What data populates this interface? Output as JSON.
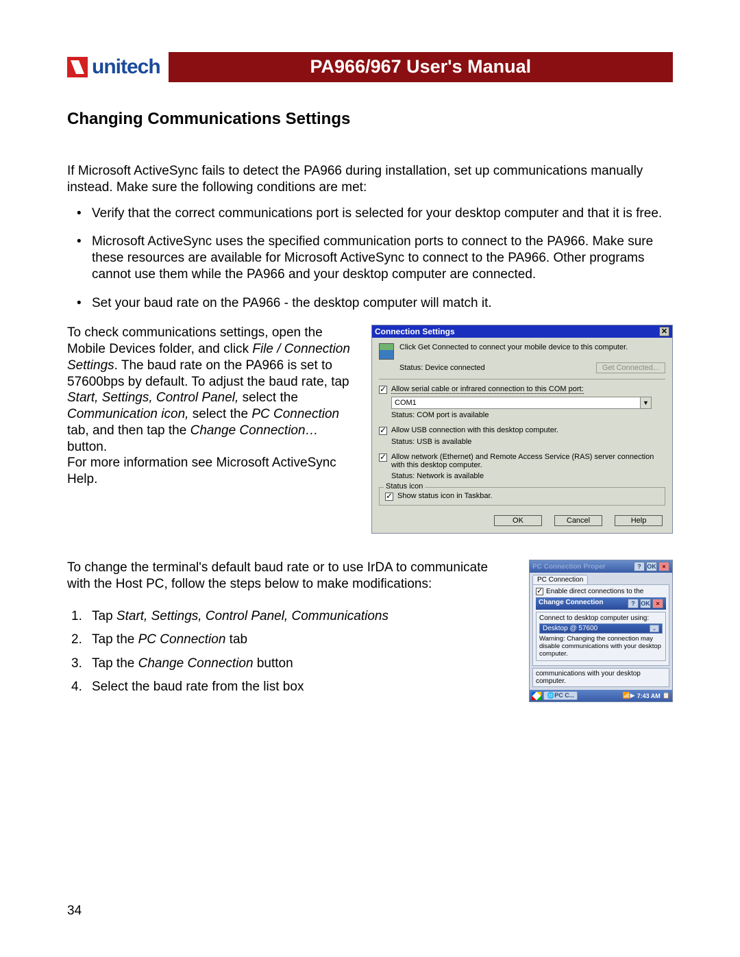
{
  "header": {
    "logo_text": "unitech",
    "title": "PA966/967 User's Manual"
  },
  "section_title": "Changing Communications Settings",
  "intro": "If Microsoft ActiveSync fails to detect the PA966 during installation, set up communications manually instead.  Make sure the following conditions are met:",
  "bullets": [
    "Verify that the correct communications port is selected for your desktop computer and that it is free.",
    "Microsoft ActiveSync uses the specified communication ports to connect to the PA966.  Make sure these resources are available for Microsoft ActiveSync to connect to the PA966.  Other programs cannot use them while the PA966 and your desktop computer are connected.",
    "Set your baud rate on the PA966 - the desktop computer will match it."
  ],
  "para1_a": "To check communications settings, open the Mobile Devices folder, and click ",
  "para1_i1": "File / Connection Settings",
  "para1_b": ".  The baud rate on the PA966 is set to 57600bps by default.  To adjust the baud rate, tap ",
  "para1_i2": "Start, Settings, Control Panel,",
  "para1_c": " select the ",
  "para1_i3": "Communication icon,",
  "para1_d": " select the ",
  "para1_i4": "PC Connection",
  "para1_e": " tab, and then tap the ",
  "para1_i5": "Change Connection…",
  "para1_f": " button.",
  "para1_g": "For more information see Microsoft ActiveSync Help.",
  "conn": {
    "title": "Connection Settings",
    "desc": "Click Get Connected to connect your mobile device to this computer.",
    "status1_label": "Status:",
    "status1_val": "Device connected",
    "get_connected": "Get Connected...",
    "chk_serial": "Allow serial cable or infrared connection to this COM port:",
    "combo_val": "COM1",
    "status_com": "Status:   COM port is available",
    "chk_usb": "Allow USB connection with this desktop computer.",
    "status_usb": "Status:   USB is available",
    "chk_net": "Allow network (Ethernet) and Remote Access Service (RAS) server connection with this desktop computer.",
    "status_net": "Status:   Network is available",
    "fieldset_legend": "Status icon",
    "chk_tray": "Show status icon in Taskbar.",
    "ok": "OK",
    "cancel": "Cancel",
    "help": "Help"
  },
  "para2": "To change the terminal's default baud rate or to use IrDA to communicate with the Host PC, follow the steps below to make modifications:",
  "steps": {
    "s1a": "Tap ",
    "s1i": "Start, Settings, Control Panel, Communications",
    "s2a": "Tap the ",
    "s2i": "PC Connection",
    "s2b": " tab",
    "s3a": "Tap the ",
    "s3i": "Change Connection",
    "s3b": " button",
    "s4": "Select the baud rate from the list box"
  },
  "pc": {
    "title": "PC Connection Proper",
    "tab": "PC Connection",
    "chk": "Enable direct connections to the",
    "inner_title": "Change Connection",
    "connect_label": "Connect to desktop computer using:",
    "drop": "Desktop @ 57600",
    "warn": "Warning: Changing the connection may disable communications with your desktop computer.",
    "below": "communications with your desktop computer.",
    "task_app": "PC C...",
    "task_time": "7:43 AM"
  },
  "page_number": "34"
}
